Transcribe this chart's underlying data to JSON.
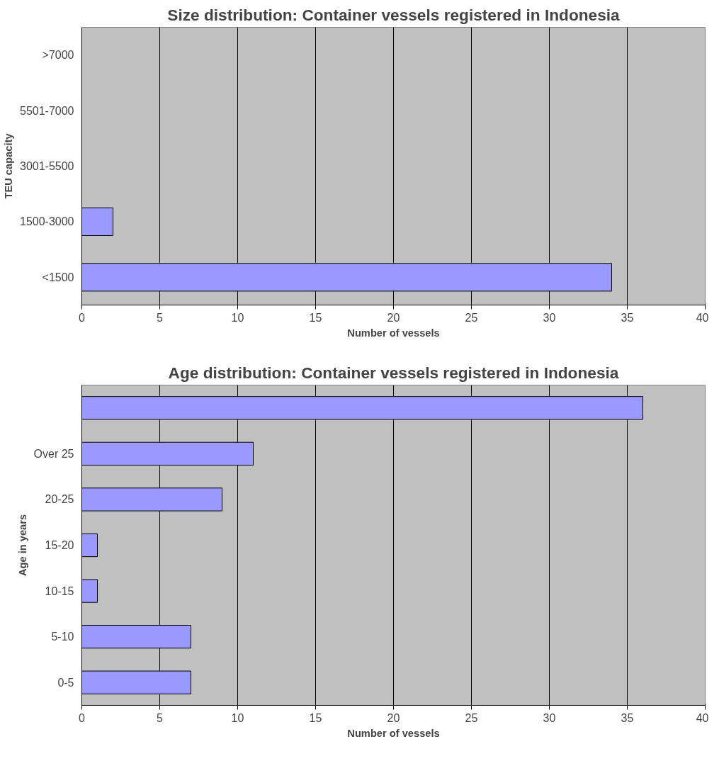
{
  "chart_data": [
    {
      "type": "bar",
      "orientation": "horizontal",
      "title": "Size distribution: Container vessels registered in Indonesia",
      "xlabel": "Number of vessels",
      "ylabel": "TEU capacity",
      "categories": [
        ">7000",
        "5501-7000",
        "3001-5500",
        "1500-3000",
        "<1500"
      ],
      "values": [
        0,
        0,
        0,
        2,
        34
      ],
      "color": "#9999ff",
      "xlim": [
        0,
        40
      ],
      "xticks": [
        0,
        5,
        10,
        15,
        20,
        25,
        30,
        35,
        40
      ],
      "grid": "x"
    },
    {
      "type": "bar",
      "orientation": "horizontal",
      "title": "Age distribution: Container vessels registered in Indonesia",
      "xlabel": "Number of vessels",
      "ylabel": "Age in years",
      "categories": [
        null,
        "Over 25",
        "20-25",
        "15-20",
        "10-15",
        "5-10",
        "0-5"
      ],
      "values": [
        36,
        11,
        9,
        1,
        1,
        7,
        7
      ],
      "color": "#9999ff",
      "xlim": [
        0,
        40
      ],
      "xticks": [
        0,
        5,
        10,
        15,
        20,
        25,
        30,
        35,
        40
      ],
      "grid": "x"
    }
  ]
}
